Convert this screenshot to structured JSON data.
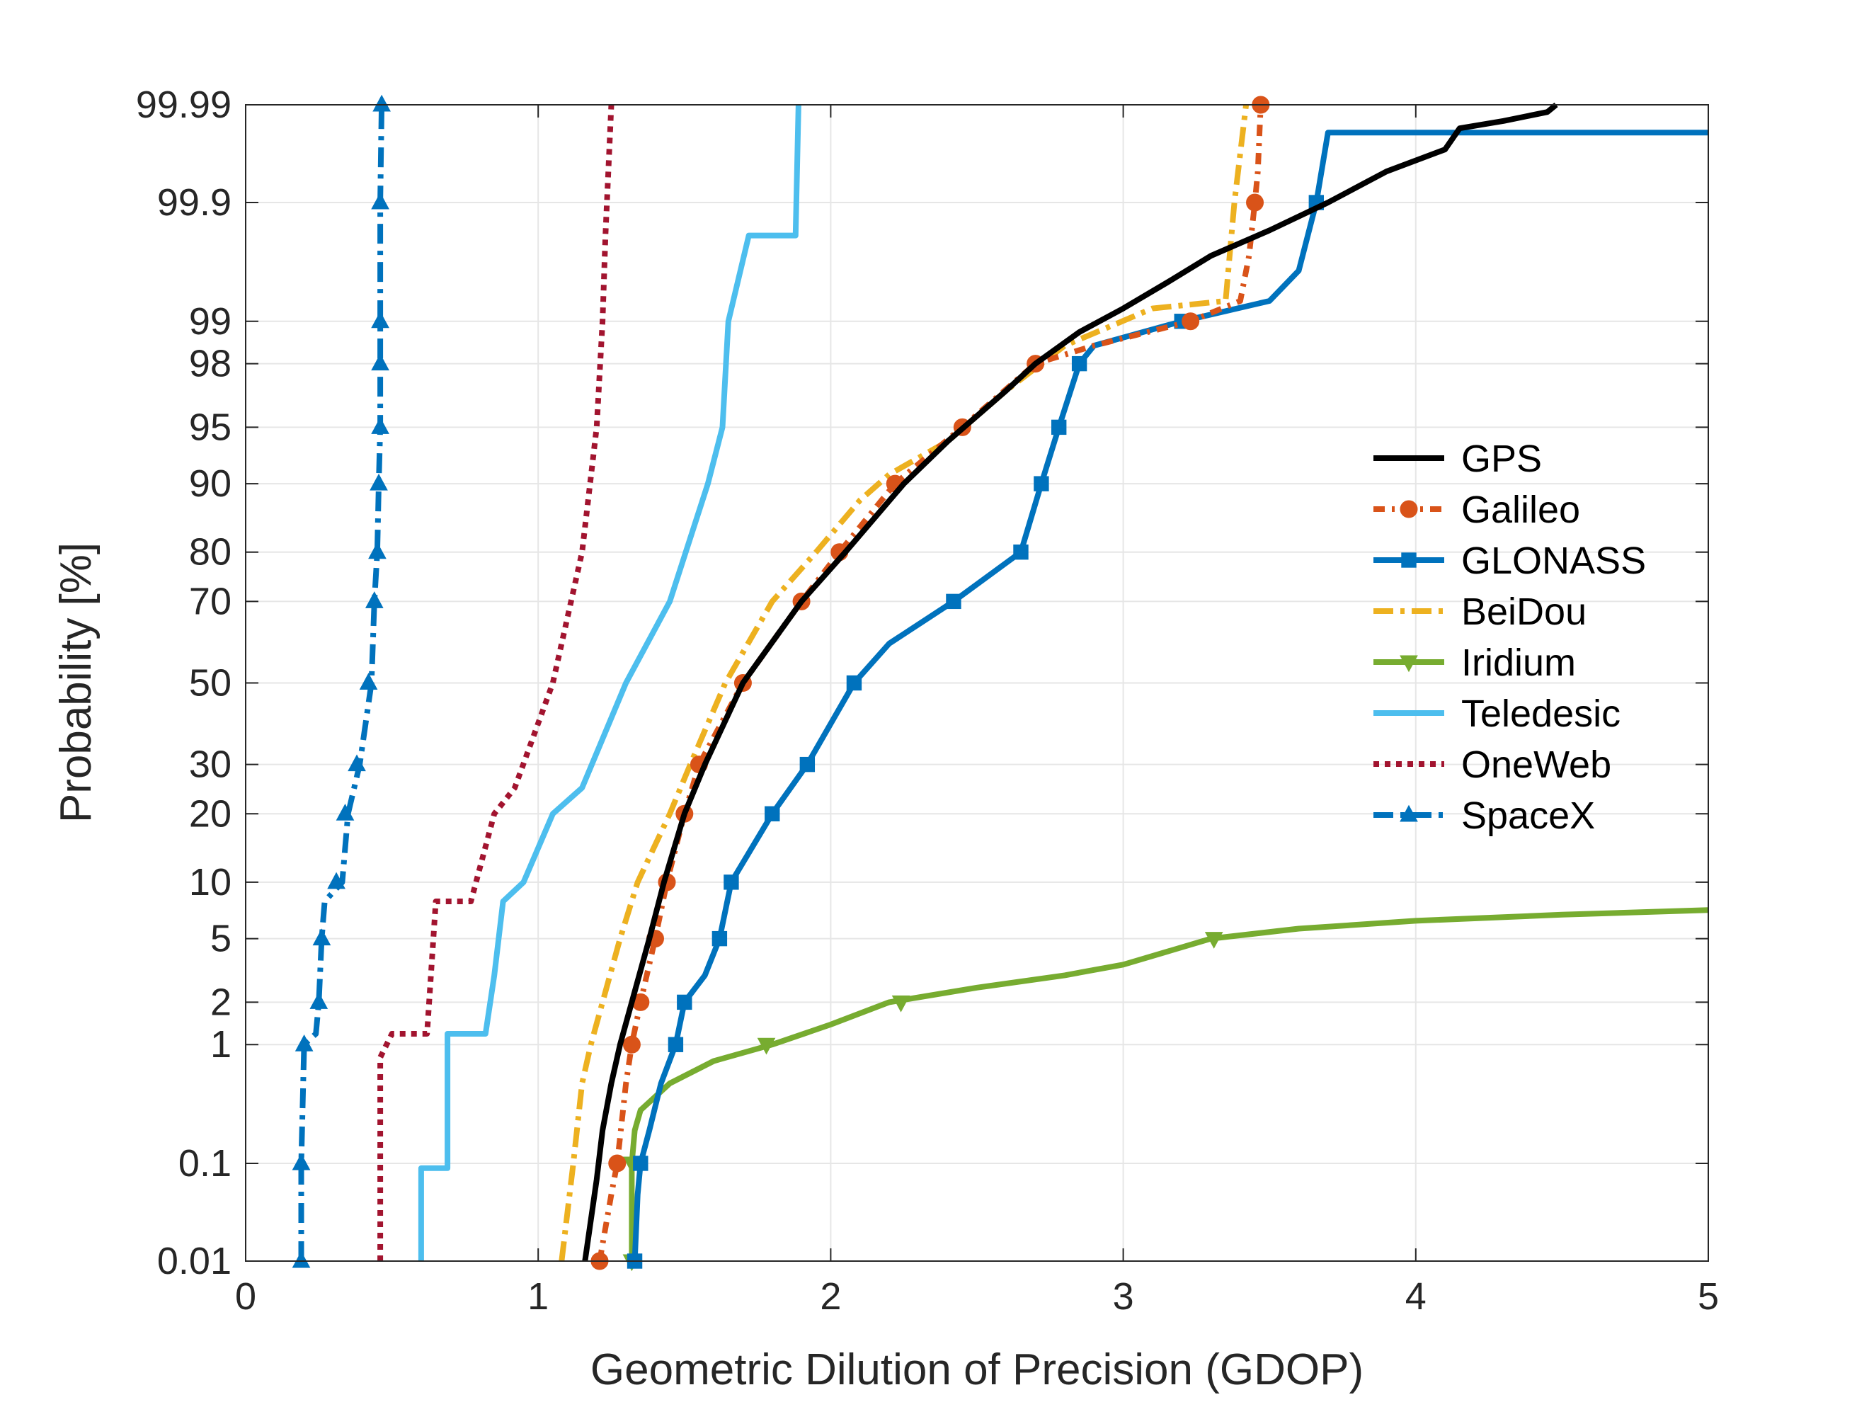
{
  "chart_data": {
    "type": "line",
    "xlabel": "Geometric Dilution of Precision (GDOP)",
    "ylabel": "Probability [%]",
    "xlim": [
      0,
      5
    ],
    "ylim_percent": [
      0.01,
      99.99
    ],
    "y_scale": "normal-probability",
    "grid": true,
    "legend_position": "right",
    "x_ticks": [
      0,
      1,
      2,
      3,
      4,
      5
    ],
    "x_tick_labels": [
      "0",
      "1",
      "2",
      "3",
      "4",
      "5"
    ],
    "y_ticks": [
      0.01,
      0.1,
      1,
      2,
      5,
      10,
      20,
      30,
      50,
      70,
      80,
      90,
      95,
      98,
      99,
      99.9,
      99.99
    ],
    "y_tick_labels": [
      "0.01",
      "0.1",
      "1",
      "2",
      "5",
      "10",
      "20",
      "30",
      "50",
      "70",
      "80",
      "90",
      "95",
      "98",
      "99",
      "99.9",
      "99.99"
    ],
    "series": [
      {
        "name": "GPS",
        "color": "#000000",
        "dash": "solid",
        "width": 4,
        "marker": "none",
        "points": [
          [
            1.16,
            0.01
          ],
          [
            1.2,
            0.07
          ],
          [
            1.22,
            0.2
          ],
          [
            1.25,
            0.5
          ],
          [
            1.28,
            1
          ],
          [
            1.32,
            2
          ],
          [
            1.38,
            5
          ],
          [
            1.43,
            10
          ],
          [
            1.5,
            20
          ],
          [
            1.57,
            30
          ],
          [
            1.7,
            50
          ],
          [
            1.9,
            70
          ],
          [
            2.05,
            80
          ],
          [
            2.25,
            90
          ],
          [
            2.4,
            94
          ],
          [
            2.6,
            97
          ],
          [
            2.7,
            98
          ],
          [
            2.85,
            98.8
          ],
          [
            3.0,
            99.2
          ],
          [
            3.15,
            99.5
          ],
          [
            3.3,
            99.7
          ],
          [
            3.5,
            99.82
          ],
          [
            3.7,
            99.9
          ],
          [
            3.9,
            99.95
          ],
          [
            4.1,
            99.97
          ],
          [
            4.15,
            99.982
          ],
          [
            4.3,
            99.985
          ],
          [
            4.45,
            99.988
          ],
          [
            4.48,
            99.99
          ]
        ]
      },
      {
        "name": "Galileo",
        "color": "#D95319",
        "dash": "8 5 2 5",
        "width": 4,
        "marker": "circle",
        "points": [
          [
            1.21,
            0.01
          ],
          [
            1.25,
            0.05
          ],
          [
            1.27,
            0.1
          ],
          [
            1.3,
            0.5
          ],
          [
            1.32,
            1
          ],
          [
            1.35,
            2
          ],
          [
            1.4,
            5
          ],
          [
            1.44,
            10
          ],
          [
            1.5,
            20
          ],
          [
            1.55,
            30
          ],
          [
            1.7,
            50
          ],
          [
            1.9,
            70
          ],
          [
            2.03,
            80
          ],
          [
            2.22,
            90
          ],
          [
            2.45,
            95
          ],
          [
            2.7,
            98
          ],
          [
            2.9,
            98.5
          ],
          [
            3.23,
            99
          ],
          [
            3.4,
            99.3
          ],
          [
            3.43,
            99.7
          ],
          [
            3.45,
            99.9
          ],
          [
            3.46,
            99.95
          ],
          [
            3.47,
            99.99
          ]
        ],
        "markers": [
          [
            1.21,
            0.01
          ],
          [
            1.27,
            0.1
          ],
          [
            1.32,
            1
          ],
          [
            1.35,
            2
          ],
          [
            1.4,
            5
          ],
          [
            1.44,
            10
          ],
          [
            1.5,
            20
          ],
          [
            1.55,
            30
          ],
          [
            1.7,
            50
          ],
          [
            1.9,
            70
          ],
          [
            2.03,
            80
          ],
          [
            2.22,
            90
          ],
          [
            2.45,
            95
          ],
          [
            2.7,
            98
          ],
          [
            3.23,
            99
          ],
          [
            3.45,
            99.9
          ],
          [
            3.47,
            99.99
          ]
        ]
      },
      {
        "name": "GLONASS",
        "color": "#0072BD",
        "dash": "solid",
        "width": 4,
        "marker": "square",
        "points": [
          [
            1.33,
            0.01
          ],
          [
            1.34,
            0.05
          ],
          [
            1.35,
            0.1
          ],
          [
            1.38,
            0.2
          ],
          [
            1.42,
            0.5
          ],
          [
            1.47,
            1
          ],
          [
            1.5,
            2
          ],
          [
            1.57,
            3
          ],
          [
            1.62,
            5
          ],
          [
            1.66,
            10
          ],
          [
            1.8,
            20
          ],
          [
            1.92,
            30
          ],
          [
            2.08,
            50
          ],
          [
            2.2,
            60
          ],
          [
            2.42,
            70
          ],
          [
            2.65,
            80
          ],
          [
            2.72,
            90
          ],
          [
            2.78,
            95
          ],
          [
            2.85,
            98
          ],
          [
            2.9,
            98.5
          ],
          [
            3.2,
            99
          ],
          [
            3.5,
            99.3
          ],
          [
            3.6,
            99.6
          ],
          [
            3.66,
            99.9
          ],
          [
            3.7,
            99.98
          ],
          [
            5.0,
            99.98
          ]
        ],
        "markers": [
          [
            1.33,
            0.01
          ],
          [
            1.35,
            0.1
          ],
          [
            1.47,
            1
          ],
          [
            1.5,
            2
          ],
          [
            1.62,
            5
          ],
          [
            1.66,
            10
          ],
          [
            1.8,
            20
          ],
          [
            1.92,
            30
          ],
          [
            2.08,
            50
          ],
          [
            2.42,
            70
          ],
          [
            2.65,
            80
          ],
          [
            2.72,
            90
          ],
          [
            2.78,
            95
          ],
          [
            2.85,
            98
          ],
          [
            3.2,
            99
          ],
          [
            3.66,
            99.9
          ]
        ]
      },
      {
        "name": "BeiDou",
        "color": "#EDB120",
        "dash": "14 5 3 5",
        "width": 4,
        "marker": "none",
        "points": [
          [
            1.08,
            0.01
          ],
          [
            1.12,
            0.1
          ],
          [
            1.15,
            0.5
          ],
          [
            1.18,
            1
          ],
          [
            1.22,
            2
          ],
          [
            1.28,
            5
          ],
          [
            1.34,
            10
          ],
          [
            1.45,
            20
          ],
          [
            1.52,
            30
          ],
          [
            1.64,
            50
          ],
          [
            1.8,
            70
          ],
          [
            1.95,
            80
          ],
          [
            2.1,
            88
          ],
          [
            2.2,
            91
          ],
          [
            2.4,
            94
          ],
          [
            2.6,
            97
          ],
          [
            2.8,
            98.5
          ],
          [
            3.1,
            99.2
          ],
          [
            3.35,
            99.3
          ],
          [
            3.38,
            99.9
          ],
          [
            3.42,
            99.99
          ]
        ]
      },
      {
        "name": "Iridium",
        "color": "#77AC30",
        "dash": "solid",
        "width": 4,
        "marker": "triangle-down",
        "points": [
          [
            1.32,
            0.01
          ],
          [
            1.32,
            0.1
          ],
          [
            1.33,
            0.2
          ],
          [
            1.35,
            0.3
          ],
          [
            1.45,
            0.5
          ],
          [
            1.6,
            0.75
          ],
          [
            1.8,
            1
          ],
          [
            2.0,
            1.4
          ],
          [
            2.2,
            2
          ],
          [
            2.5,
            2.5
          ],
          [
            2.8,
            3
          ],
          [
            3.0,
            3.5
          ],
          [
            3.3,
            5
          ],
          [
            3.6,
            5.7
          ],
          [
            4.0,
            6.3
          ],
          [
            4.5,
            6.8
          ],
          [
            5.0,
            7.2
          ]
        ],
        "markers": [
          [
            1.32,
            0.01
          ],
          [
            1.32,
            0.1
          ],
          [
            1.78,
            1
          ],
          [
            2.24,
            2
          ],
          [
            3.31,
            5
          ]
        ]
      },
      {
        "name": "Teledesic",
        "color": "#4DBEEE",
        "dash": "solid",
        "width": 4,
        "marker": "none",
        "points": [
          [
            0.6,
            0.01
          ],
          [
            0.6,
            0.09
          ],
          [
            0.69,
            0.09
          ],
          [
            0.69,
            1.2
          ],
          [
            0.82,
            1.2
          ],
          [
            0.85,
            3
          ],
          [
            0.88,
            8
          ],
          [
            0.95,
            10
          ],
          [
            1.05,
            20
          ],
          [
            1.15,
            25
          ],
          [
            1.3,
            50
          ],
          [
            1.45,
            70
          ],
          [
            1.58,
            90
          ],
          [
            1.63,
            95
          ],
          [
            1.65,
            99
          ],
          [
            1.72,
            99.8
          ],
          [
            1.88,
            99.8
          ],
          [
            1.89,
            99.99
          ]
        ]
      },
      {
        "name": "OneWeb",
        "color": "#A2142F",
        "dash": "4 4",
        "width": 4,
        "marker": "none",
        "points": [
          [
            0.46,
            0.01
          ],
          [
            0.46,
            0.8
          ],
          [
            0.5,
            1.2
          ],
          [
            0.62,
            1.2
          ],
          [
            0.65,
            8
          ],
          [
            0.77,
            8
          ],
          [
            0.85,
            20
          ],
          [
            0.92,
            25
          ],
          [
            1.05,
            50
          ],
          [
            1.15,
            80
          ],
          [
            1.2,
            95
          ],
          [
            1.22,
            99
          ],
          [
            1.23,
            99.8
          ],
          [
            1.25,
            99.99
          ]
        ]
      },
      {
        "name": "SpaceX",
        "color": "#0072BD",
        "dash": "14 5 3 5",
        "width": 4,
        "marker": "triangle-up",
        "points": [
          [
            0.19,
            0.01
          ],
          [
            0.19,
            0.1
          ],
          [
            0.2,
            1
          ],
          [
            0.24,
            1.2
          ],
          [
            0.25,
            2
          ],
          [
            0.26,
            5
          ],
          [
            0.27,
            8
          ],
          [
            0.33,
            10
          ],
          [
            0.35,
            20
          ],
          [
            0.39,
            30
          ],
          [
            0.43,
            50
          ],
          [
            0.44,
            70
          ],
          [
            0.45,
            80
          ],
          [
            0.455,
            90
          ],
          [
            0.46,
            95
          ],
          [
            0.46,
            98
          ],
          [
            0.46,
            99
          ],
          [
            0.46,
            99.9
          ],
          [
            0.465,
            99.99
          ]
        ],
        "markers": [
          [
            0.19,
            0.01
          ],
          [
            0.19,
            0.1
          ],
          [
            0.2,
            1
          ],
          [
            0.25,
            2
          ],
          [
            0.26,
            5
          ],
          [
            0.31,
            10
          ],
          [
            0.34,
            20
          ],
          [
            0.38,
            30
          ],
          [
            0.42,
            50
          ],
          [
            0.44,
            70
          ],
          [
            0.45,
            80
          ],
          [
            0.455,
            90
          ],
          [
            0.46,
            95
          ],
          [
            0.46,
            98
          ],
          [
            0.46,
            99
          ],
          [
            0.46,
            99.9
          ],
          [
            0.465,
            99.99
          ]
        ]
      }
    ]
  }
}
